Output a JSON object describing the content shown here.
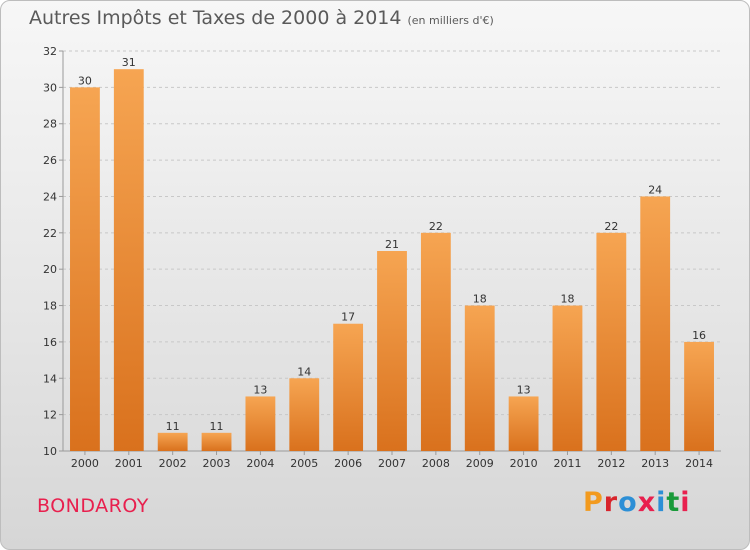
{
  "header": {
    "title": "Autres Impôts et Taxes de 2000 à 2014",
    "unit": "(en milliers d'€)"
  },
  "footer": {
    "place": "BONDAROY",
    "brand": "Proxiti",
    "brand_colors": [
      "#f29a1e",
      "#d8242b",
      "#2c8fd6",
      "#e8204e",
      "#2c8fd6",
      "#1a9a3a",
      "#e8204e"
    ]
  },
  "colors": {
    "bar_top": "#f6a552",
    "bar_bottom": "#d9711d",
    "grid": "#c8c8c8",
    "axis": "#9a9a9a"
  },
  "chart_data": {
    "type": "bar",
    "categories": [
      "2000",
      "2001",
      "2002",
      "2003",
      "2004",
      "2005",
      "2006",
      "2007",
      "2008",
      "2009",
      "2010",
      "2011",
      "2012",
      "2013",
      "2014"
    ],
    "values": [
      30,
      31,
      11,
      11,
      13,
      14,
      17,
      21,
      22,
      18,
      13,
      18,
      22,
      24,
      16
    ],
    "data_labels": [
      "30",
      "31",
      "11",
      "11",
      "13",
      "14",
      "17",
      "21",
      "22",
      "18",
      "13",
      "18",
      "22",
      "24",
      "16"
    ],
    "ylim": [
      10,
      32
    ],
    "yticks": [
      "10",
      "12",
      "14",
      "16",
      "18",
      "20",
      "22",
      "24",
      "26",
      "28",
      "30",
      "32"
    ],
    "grid": true,
    "legend": "none"
  }
}
